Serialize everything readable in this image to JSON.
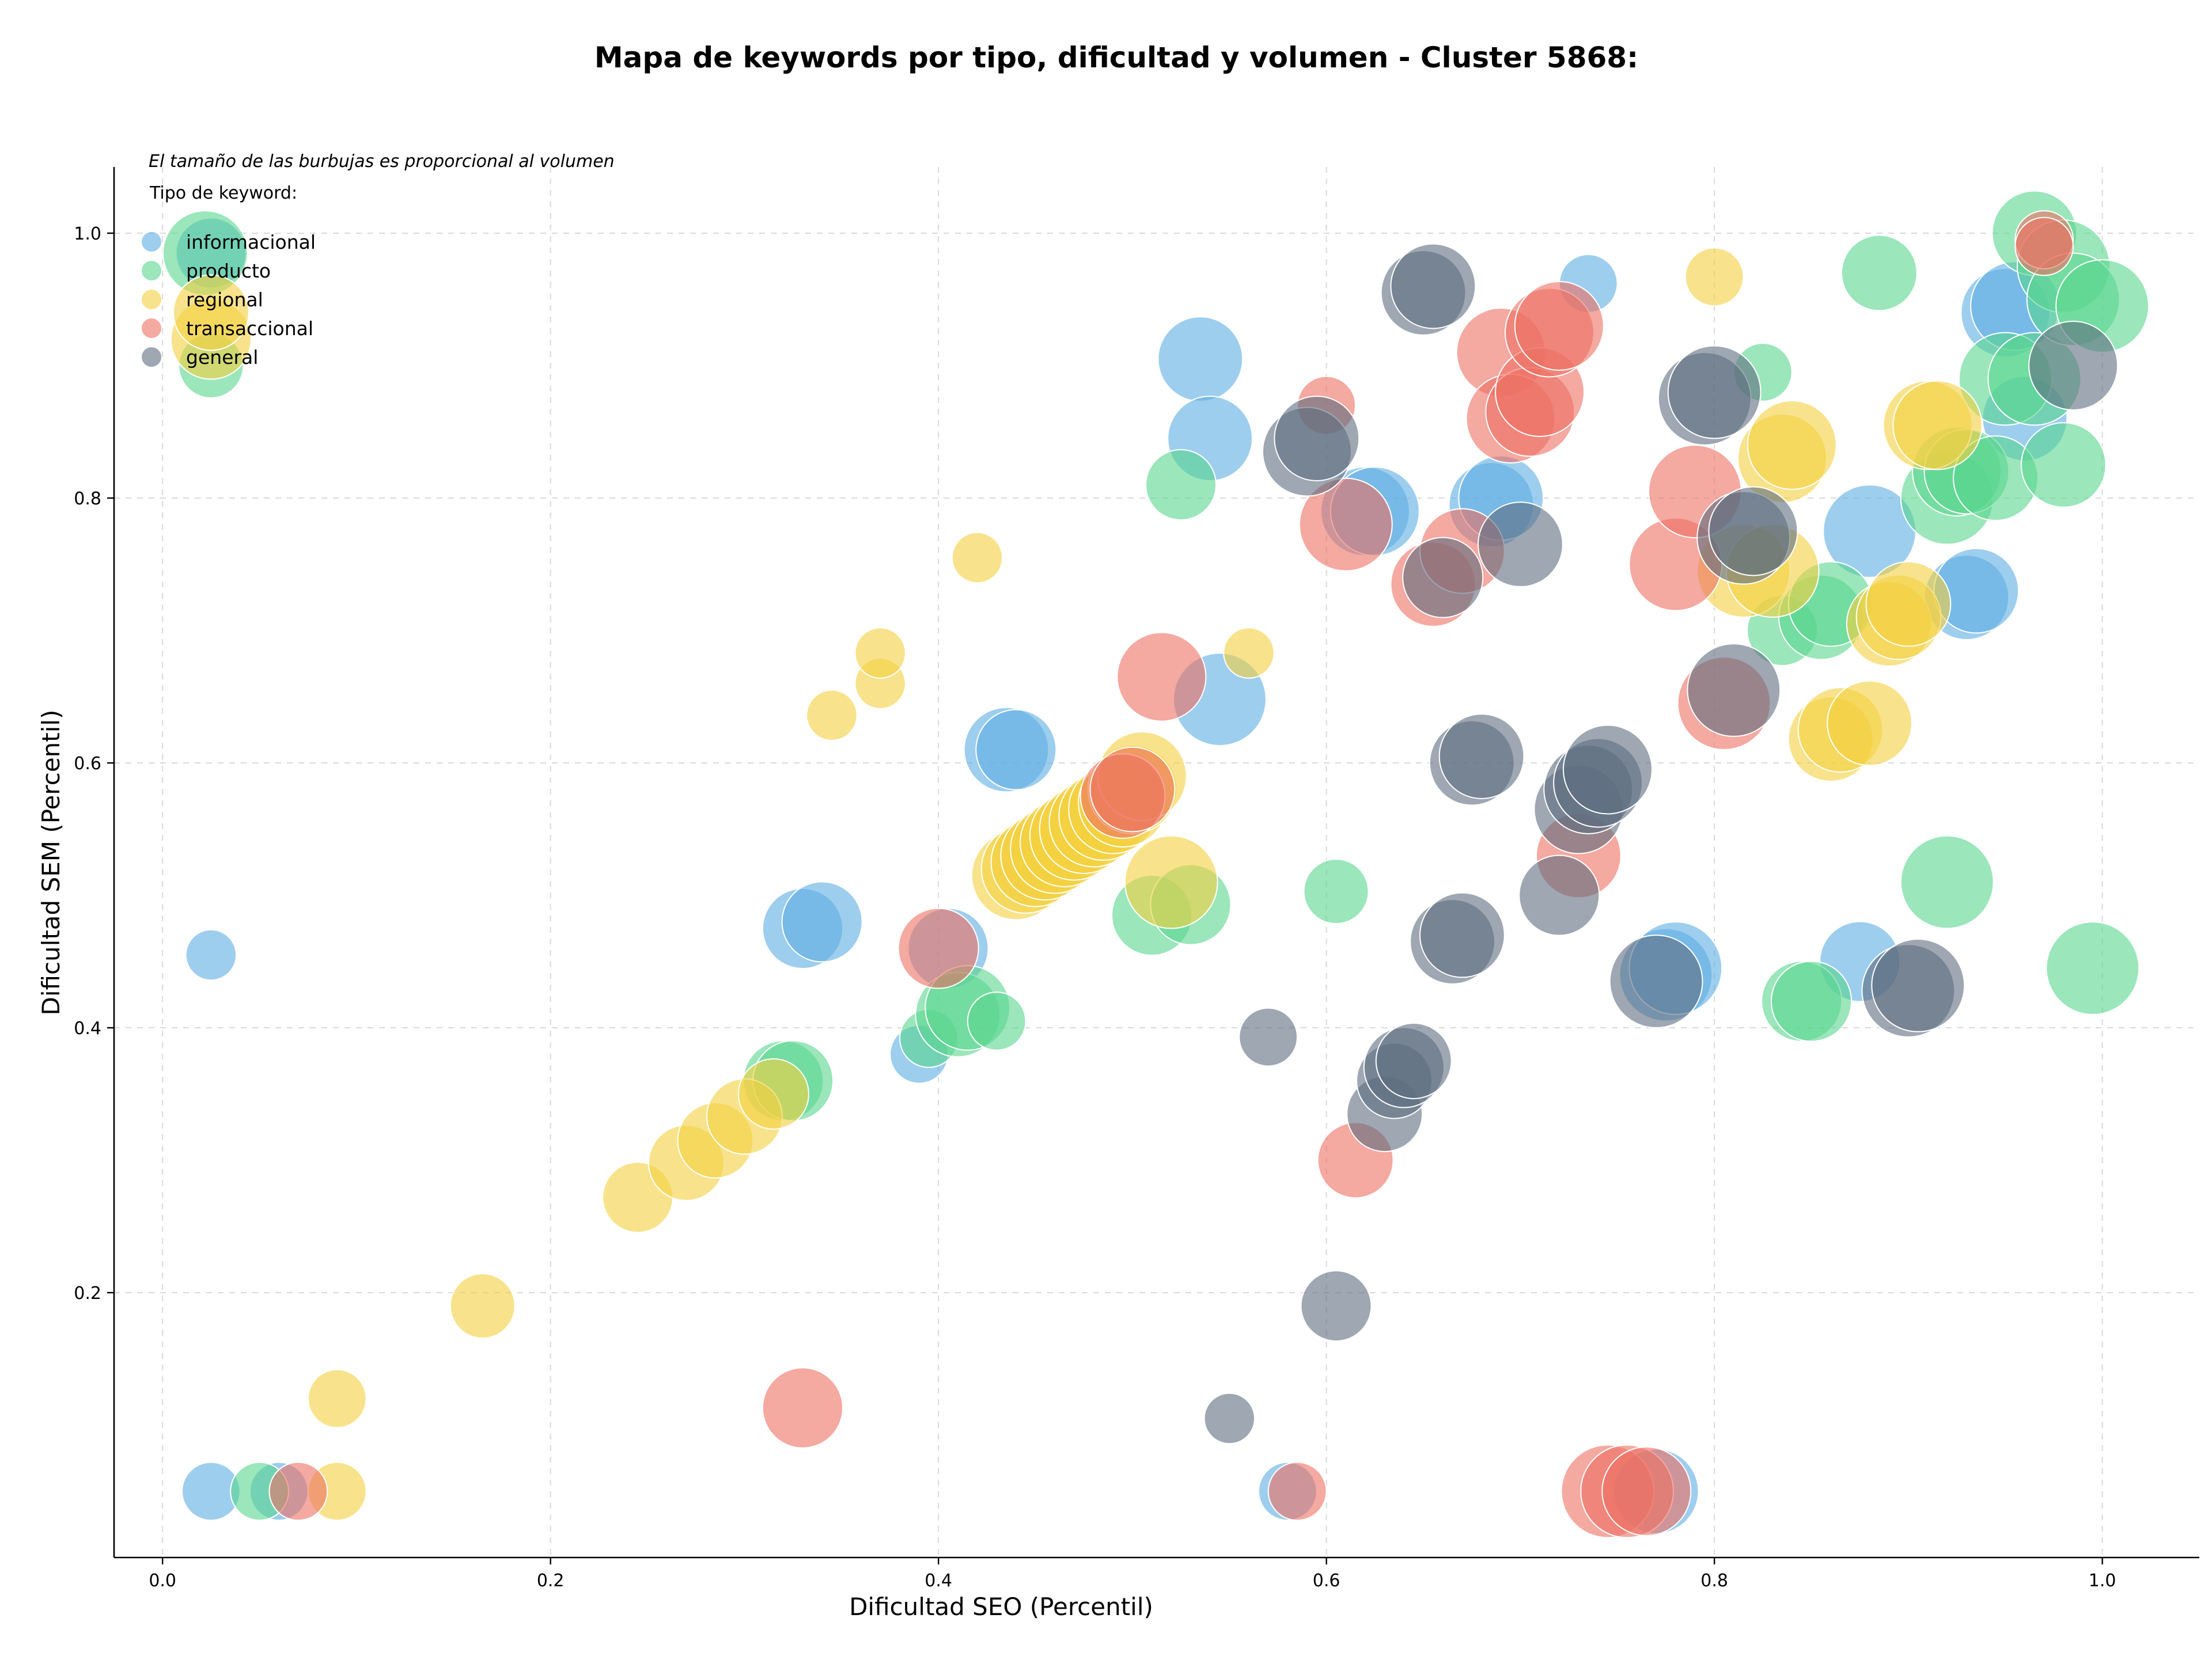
{
  "chart_data": {
    "type": "scatter",
    "title": "Mapa de keywords por tipo, dificultad y volumen - Cluster 5868:",
    "xlabel": "Dificultad SEO (Percentil)",
    "ylabel": "Dificultad SEM (Percentil)",
    "note": "El tamaño de las burbujas es proporcional al volumen",
    "legend_title": "Tipo de keyword:",
    "legend_position": "top-left",
    "grid": true,
    "xlim": [
      -0.025,
      1.05
    ],
    "ylim": [
      0,
      1.05
    ],
    "x_ticks": [
      0.0,
      0.2,
      0.4,
      0.6,
      0.8,
      1.0
    ],
    "y_ticks": [
      0.2,
      0.4,
      0.6,
      0.8,
      1.0
    ],
    "x_tick_labels": [
      "0.0",
      "0.2",
      "0.4",
      "0.6",
      "0.8",
      "1.0"
    ],
    "y_tick_labels": [
      "0.2",
      "0.4",
      "0.6",
      "0.8",
      "1.0"
    ],
    "series": [
      {
        "name": "informacional",
        "color": "#5dade2",
        "points": [
          [
            0.025,
            0.985,
            5
          ],
          [
            0.025,
            0.455,
            2
          ],
          [
            0.025,
            0.05,
            3
          ],
          [
            0.06,
            0.05,
            3
          ],
          [
            0.33,
            0.475,
            7
          ],
          [
            0.34,
            0.48,
            7
          ],
          [
            0.39,
            0.38,
            3
          ],
          [
            0.405,
            0.46,
            7
          ],
          [
            0.435,
            0.61,
            8
          ],
          [
            0.44,
            0.61,
            7
          ],
          [
            0.535,
            0.905,
            8
          ],
          [
            0.54,
            0.845,
            8
          ],
          [
            0.545,
            0.648,
            10
          ],
          [
            0.58,
            0.05,
            3
          ],
          [
            0.62,
            0.79,
            9
          ],
          [
            0.625,
            0.79,
            9
          ],
          [
            0.685,
            0.795,
            8
          ],
          [
            0.69,
            0.8,
            8
          ],
          [
            0.735,
            0.962,
            3
          ],
          [
            0.77,
            0.05,
            8
          ],
          [
            0.775,
            0.44,
            10
          ],
          [
            0.78,
            0.445,
            10
          ],
          [
            0.875,
            0.45,
            7
          ],
          [
            0.88,
            0.775,
            10
          ],
          [
            0.93,
            0.725,
            8
          ],
          [
            0.935,
            0.73,
            8
          ],
          [
            0.95,
            0.94,
            9
          ],
          [
            0.955,
            0.945,
            9
          ],
          [
            0.96,
            0.86,
            8
          ]
        ]
      },
      {
        "name": "producto",
        "color": "#58d68d",
        "points": [
          [
            0.022,
            0.985,
            8
          ],
          [
            0.025,
            0.9,
            4
          ],
          [
            0.05,
            0.05,
            3
          ],
          [
            0.32,
            0.36,
            7
          ],
          [
            0.325,
            0.36,
            7
          ],
          [
            0.395,
            0.392,
            3
          ],
          [
            0.41,
            0.41,
            8
          ],
          [
            0.415,
            0.415,
            8
          ],
          [
            0.43,
            0.405,
            3
          ],
          [
            0.51,
            0.485,
            7
          ],
          [
            0.53,
            0.493,
            7
          ],
          [
            0.525,
            0.81,
            5
          ],
          [
            0.605,
            0.503,
            4
          ],
          [
            0.825,
            0.895,
            3
          ],
          [
            0.835,
            0.7,
            5
          ],
          [
            0.845,
            0.42,
            7
          ],
          [
            0.85,
            0.42,
            7
          ],
          [
            0.855,
            0.71,
            8
          ],
          [
            0.86,
            0.72,
            8
          ],
          [
            0.885,
            0.97,
            6
          ],
          [
            0.92,
            0.8,
            10
          ],
          [
            0.925,
            0.82,
            9
          ],
          [
            0.93,
            0.82,
            8
          ],
          [
            0.945,
            0.815,
            8
          ],
          [
            0.95,
            0.89,
            10
          ],
          [
            0.965,
            1.0,
            8
          ],
          [
            0.965,
            0.89,
            10
          ],
          [
            0.98,
            0.975,
            10
          ],
          [
            0.98,
            0.825,
            8
          ],
          [
            0.985,
            0.95,
            10
          ],
          [
            0.995,
            0.445,
            10
          ],
          [
            1.0,
            0.945,
            10
          ],
          [
            0.92,
            0.51,
            10
          ]
        ]
      },
      {
        "name": "regional",
        "color": "#f4d03f",
        "points": [
          [
            0.025,
            0.92,
            7
          ],
          [
            0.025,
            0.94,
            6
          ],
          [
            0.09,
            0.12,
            3
          ],
          [
            0.09,
            0.05,
            3
          ],
          [
            0.165,
            0.19,
            4
          ],
          [
            0.245,
            0.272,
            5
          ],
          [
            0.27,
            0.298,
            6
          ],
          [
            0.285,
            0.315,
            6
          ],
          [
            0.3,
            0.333,
            6
          ],
          [
            0.315,
            0.35,
            5
          ],
          [
            0.345,
            0.636,
            2
          ],
          [
            0.37,
            0.66,
            2
          ],
          [
            0.37,
            0.683,
            2
          ],
          [
            0.42,
            0.755,
            2
          ],
          [
            0.44,
            0.515,
            9
          ],
          [
            0.445,
            0.52,
            9
          ],
          [
            0.45,
            0.525,
            9
          ],
          [
            0.455,
            0.53,
            9
          ],
          [
            0.46,
            0.535,
            9
          ],
          [
            0.465,
            0.54,
            9
          ],
          [
            0.47,
            0.545,
            9
          ],
          [
            0.475,
            0.55,
            9
          ],
          [
            0.48,
            0.555,
            9
          ],
          [
            0.485,
            0.56,
            9
          ],
          [
            0.49,
            0.565,
            9
          ],
          [
            0.495,
            0.57,
            9
          ],
          [
            0.5,
            0.58,
            9
          ],
          [
            0.505,
            0.59,
            9
          ],
          [
            0.52,
            0.51,
            10
          ],
          [
            0.56,
            0.683,
            2
          ],
          [
            0.8,
            0.967,
            3
          ],
          [
            0.815,
            0.745,
            10
          ],
          [
            0.83,
            0.745,
            10
          ],
          [
            0.835,
            0.83,
            9
          ],
          [
            0.84,
            0.84,
            9
          ],
          [
            0.86,
            0.618,
            8
          ],
          [
            0.865,
            0.625,
            8
          ],
          [
            0.88,
            0.63,
            8
          ],
          [
            0.89,
            0.705,
            8
          ],
          [
            0.895,
            0.71,
            8
          ],
          [
            0.9,
            0.72,
            8
          ],
          [
            0.91,
            0.855,
            9
          ],
          [
            0.915,
            0.855,
            9
          ]
        ]
      },
      {
        "name": "transaccional",
        "color": "#ec7063",
        "points": [
          [
            0.07,
            0.05,
            3
          ],
          [
            0.33,
            0.113,
            7
          ],
          [
            0.4,
            0.46,
            7
          ],
          [
            0.495,
            0.575,
            8
          ],
          [
            0.5,
            0.58,
            8
          ],
          [
            0.515,
            0.665,
            9
          ],
          [
            0.585,
            0.05,
            3
          ],
          [
            0.6,
            0.87,
            3
          ],
          [
            0.61,
            0.78,
            10
          ],
          [
            0.615,
            0.3,
            6
          ],
          [
            0.655,
            0.735,
            8
          ],
          [
            0.67,
            0.76,
            8
          ],
          [
            0.69,
            0.91,
            9
          ],
          [
            0.695,
            0.86,
            9
          ],
          [
            0.705,
            0.865,
            9
          ],
          [
            0.71,
            0.88,
            9
          ],
          [
            0.715,
            0.925,
            9
          ],
          [
            0.72,
            0.93,
            9
          ],
          [
            0.73,
            0.53,
            8
          ],
          [
            0.745,
            0.05,
            10
          ],
          [
            0.755,
            0.05,
            10
          ],
          [
            0.765,
            0.05,
            9
          ],
          [
            0.78,
            0.75,
            10
          ],
          [
            0.79,
            0.805,
            10
          ],
          [
            0.805,
            0.645,
            10
          ],
          [
            0.97,
            0.995,
            3
          ],
          [
            0.97,
            0.99,
            3
          ]
        ]
      },
      {
        "name": "general",
        "color": "#5d6d7e",
        "points": [
          [
            0.55,
            0.105,
            2
          ],
          [
            0.57,
            0.393,
            3
          ],
          [
            0.605,
            0.19,
            5
          ],
          [
            0.59,
            0.835,
            9
          ],
          [
            0.595,
            0.845,
            8
          ],
          [
            0.63,
            0.335,
            6
          ],
          [
            0.635,
            0.36,
            6
          ],
          [
            0.64,
            0.37,
            7
          ],
          [
            0.645,
            0.375,
            6
          ],
          [
            0.65,
            0.955,
            8
          ],
          [
            0.655,
            0.96,
            8
          ],
          [
            0.66,
            0.74,
            7
          ],
          [
            0.665,
            0.465,
            8
          ],
          [
            0.67,
            0.47,
            8
          ],
          [
            0.675,
            0.6,
            8
          ],
          [
            0.68,
            0.605,
            8
          ],
          [
            0.7,
            0.765,
            8
          ],
          [
            0.72,
            0.5,
            7
          ],
          [
            0.73,
            0.565,
            9
          ],
          [
            0.735,
            0.58,
            9
          ],
          [
            0.74,
            0.585,
            9
          ],
          [
            0.745,
            0.595,
            9
          ],
          [
            0.77,
            0.435,
            10
          ],
          [
            0.795,
            0.875,
            10
          ],
          [
            0.8,
            0.88,
            10
          ],
          [
            0.81,
            0.655,
            10
          ],
          [
            0.815,
            0.77,
            10
          ],
          [
            0.82,
            0.775,
            9
          ],
          [
            0.9,
            0.428,
            10
          ],
          [
            0.905,
            0.432,
            10
          ],
          [
            0.985,
            0.9,
            9
          ]
        ]
      }
    ]
  }
}
